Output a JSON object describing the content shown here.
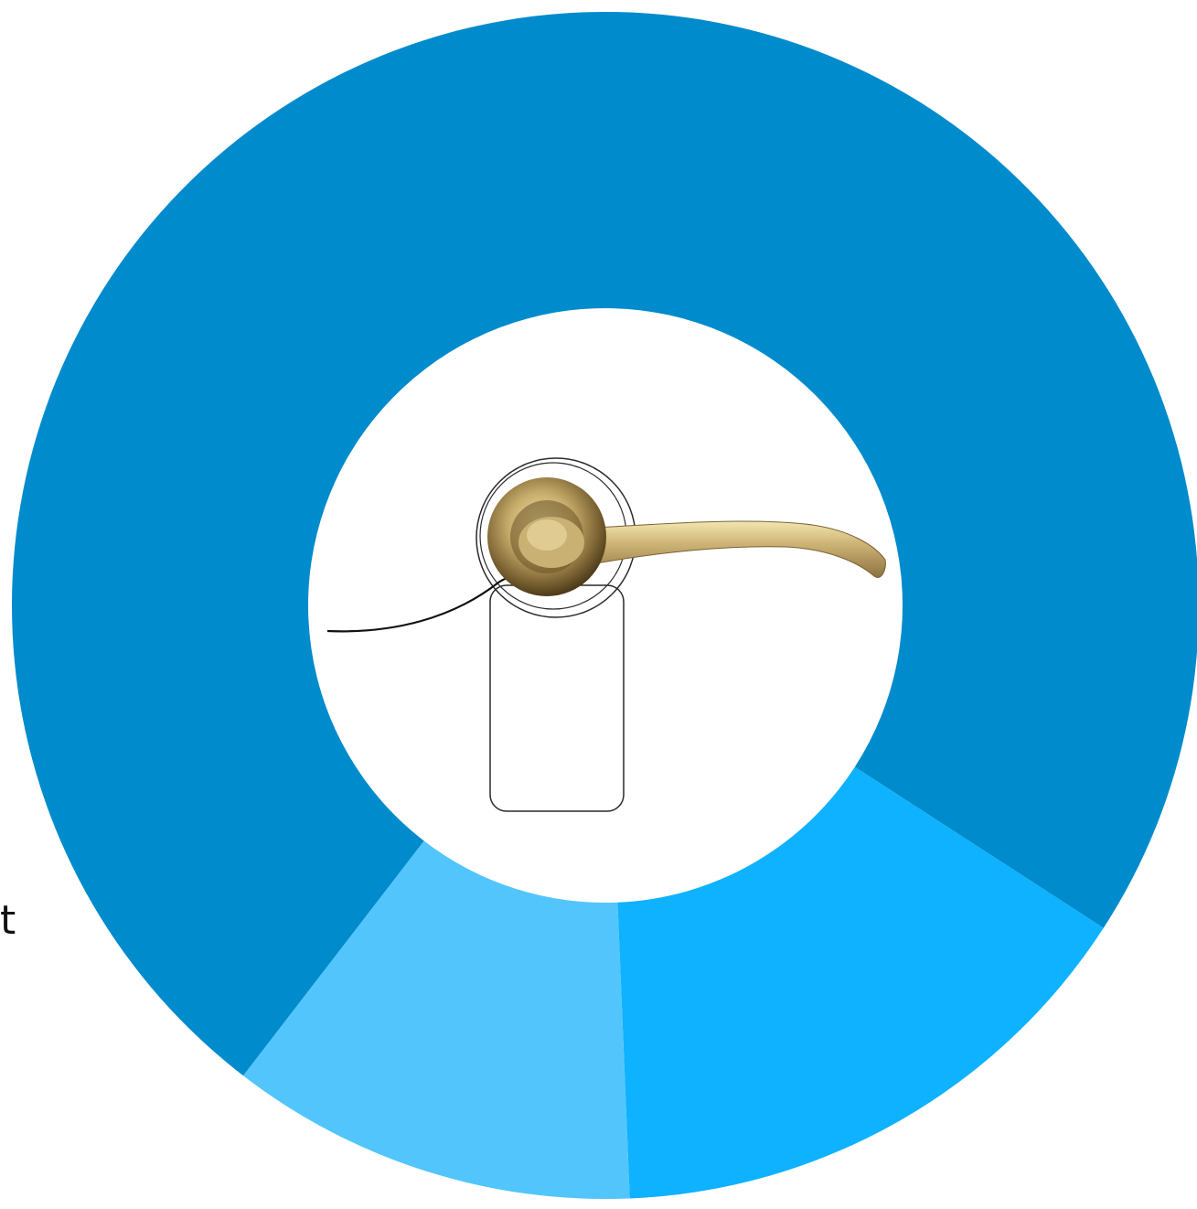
{
  "chart_data": {
    "type": "pie",
    "donut": true,
    "title": "",
    "categories": [
      "",
      "",
      ""
    ],
    "values": [
      73.7,
      15.2,
      11.1
    ],
    "colors": [
      "#008bcc",
      "#0eb2fe",
      "#52c5fd"
    ],
    "legend": "none"
  },
  "center_icon": {
    "name": "door-handle-icon",
    "handle_color": "#b8a066",
    "outline_color": "#2a2a2a"
  },
  "fragments": {
    "cut_label": "t"
  }
}
